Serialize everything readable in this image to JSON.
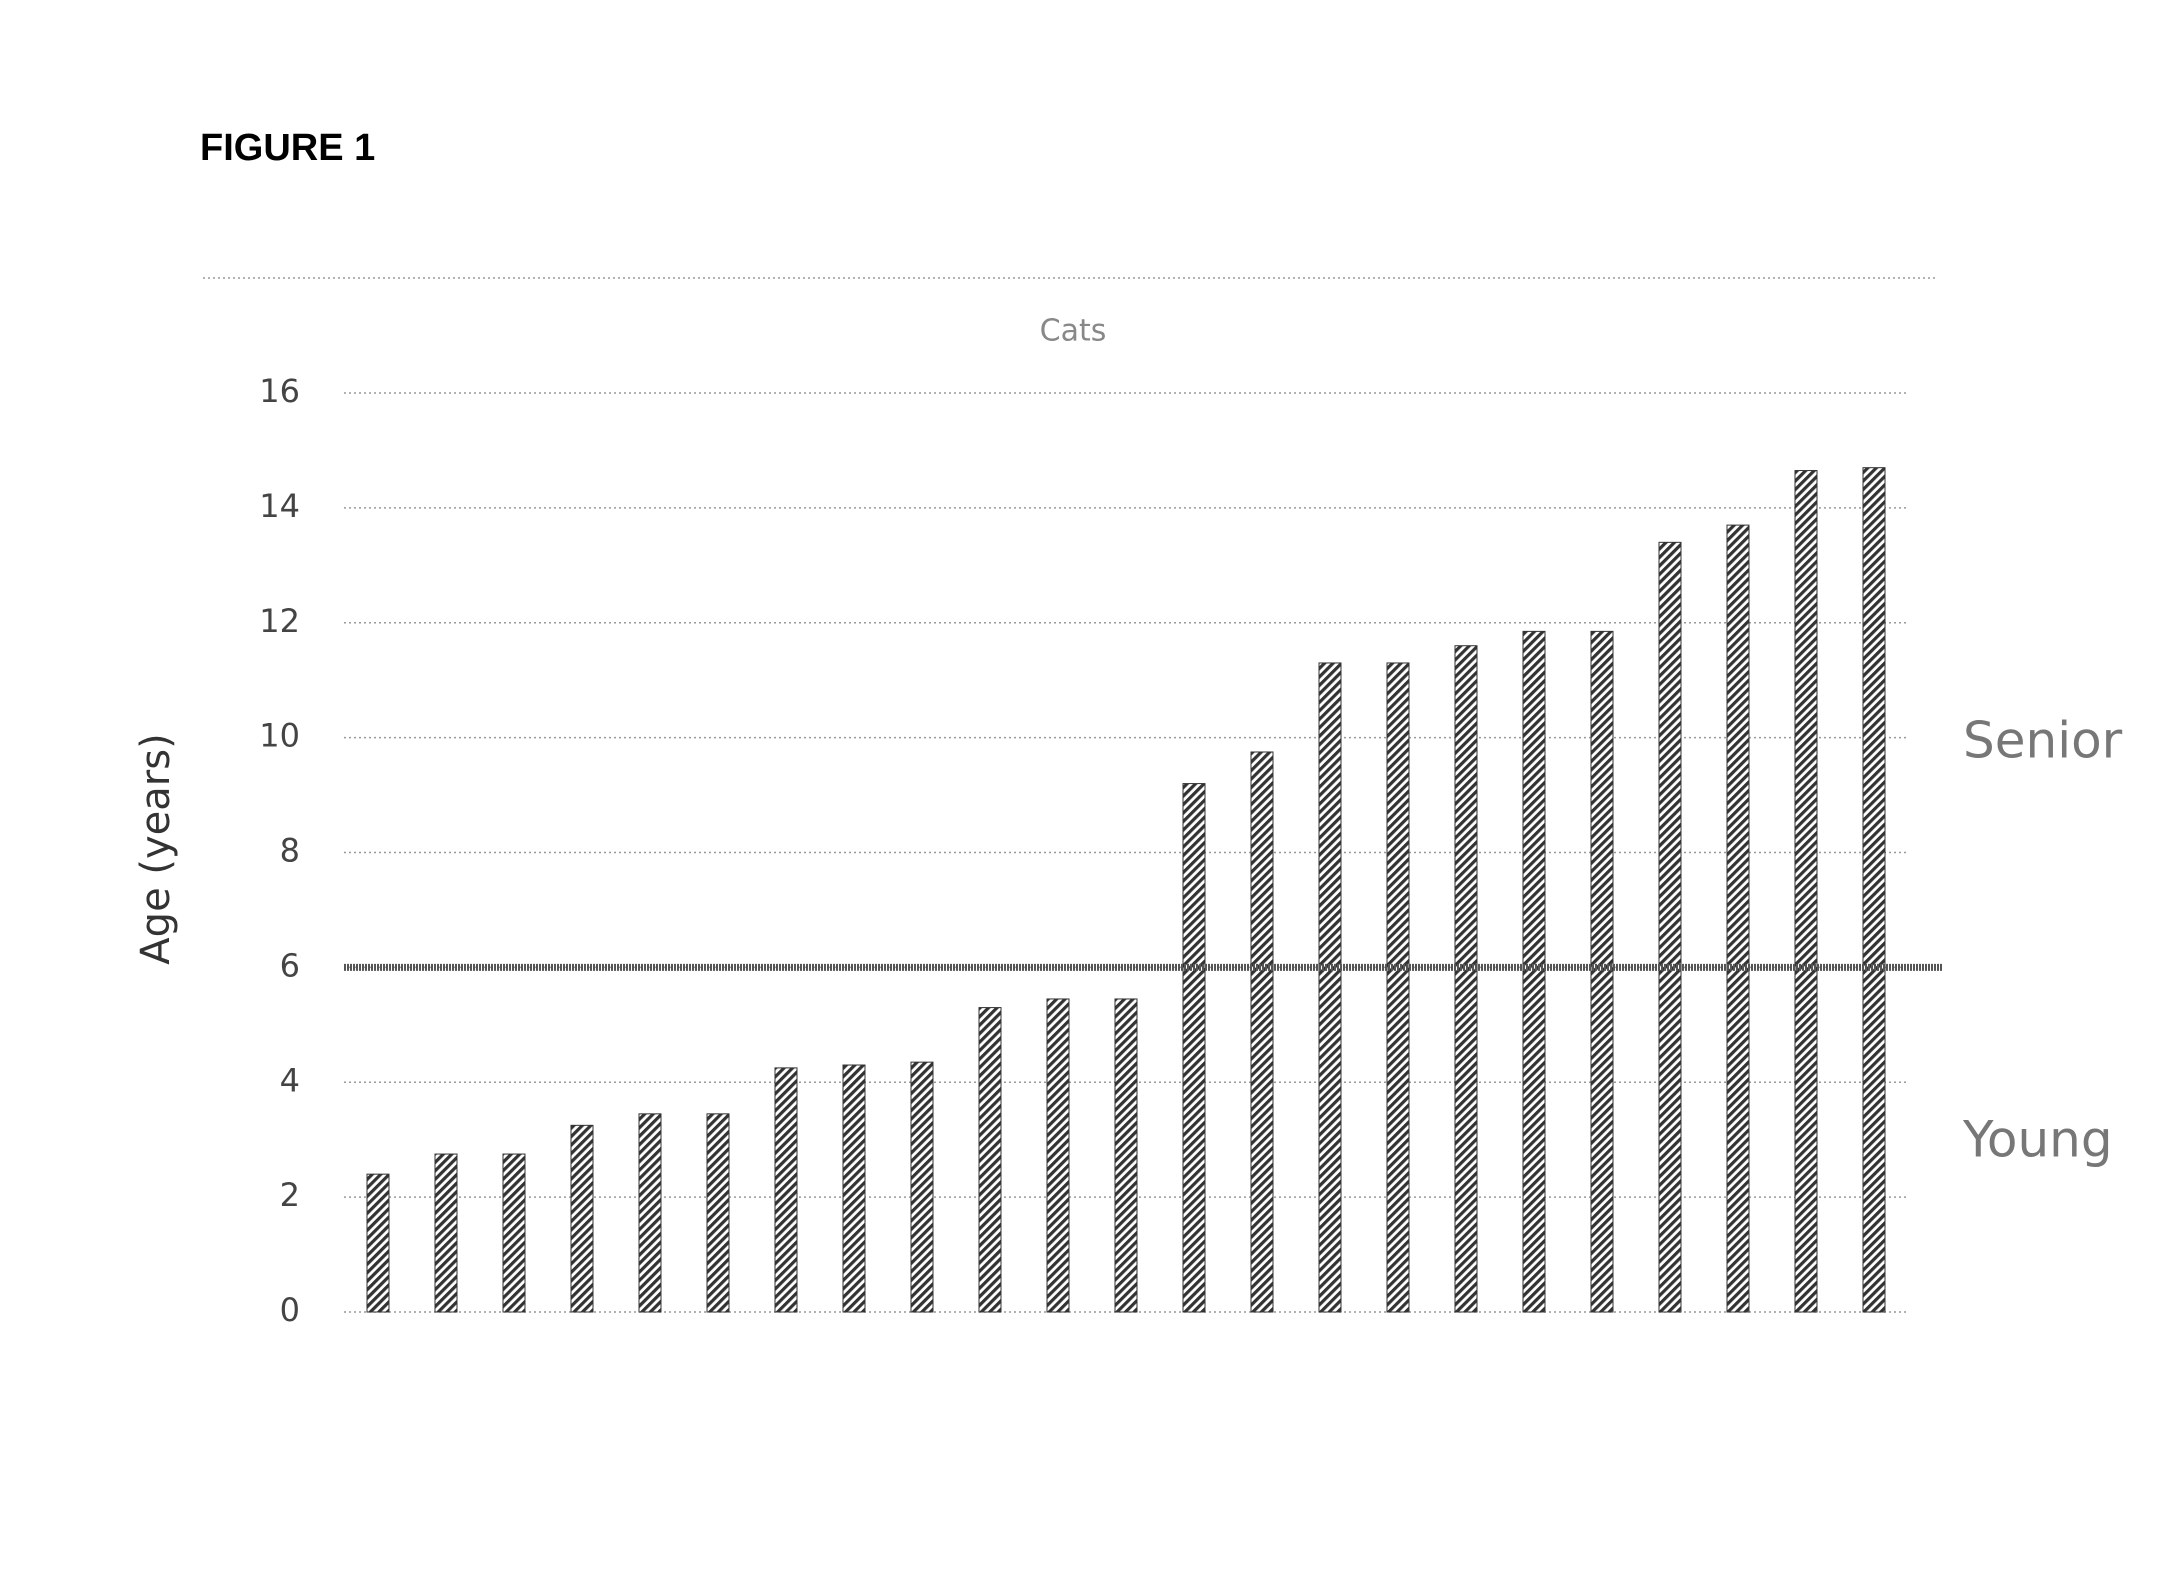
{
  "figure_label": "FIGURE 1",
  "chart_data": {
    "type": "bar",
    "title": "Cats",
    "y_label": "Age (years)",
    "categories": [
      null,
      null,
      null,
      null,
      null,
      null,
      null,
      null,
      null,
      null,
      null,
      null,
      null,
      null,
      null,
      null,
      null,
      null,
      null,
      null,
      null,
      null,
      null
    ],
    "values": [
      2.4,
      2.75,
      2.75,
      3.25,
      3.45,
      3.45,
      4.25,
      4.3,
      4.35,
      5.3,
      5.45,
      5.45,
      9.2,
      9.75,
      11.3,
      11.3,
      11.6,
      11.85,
      11.85,
      13.4,
      13.7,
      14.65,
      14.7
    ],
    "color": "#333333",
    "ylim": [
      0,
      16
    ],
    "yticks": [
      0,
      2,
      4,
      6,
      8,
      10,
      12,
      14,
      16
    ],
    "grid": true,
    "threshold": 6,
    "annotations": [
      "Senior",
      "Young"
    ]
  }
}
